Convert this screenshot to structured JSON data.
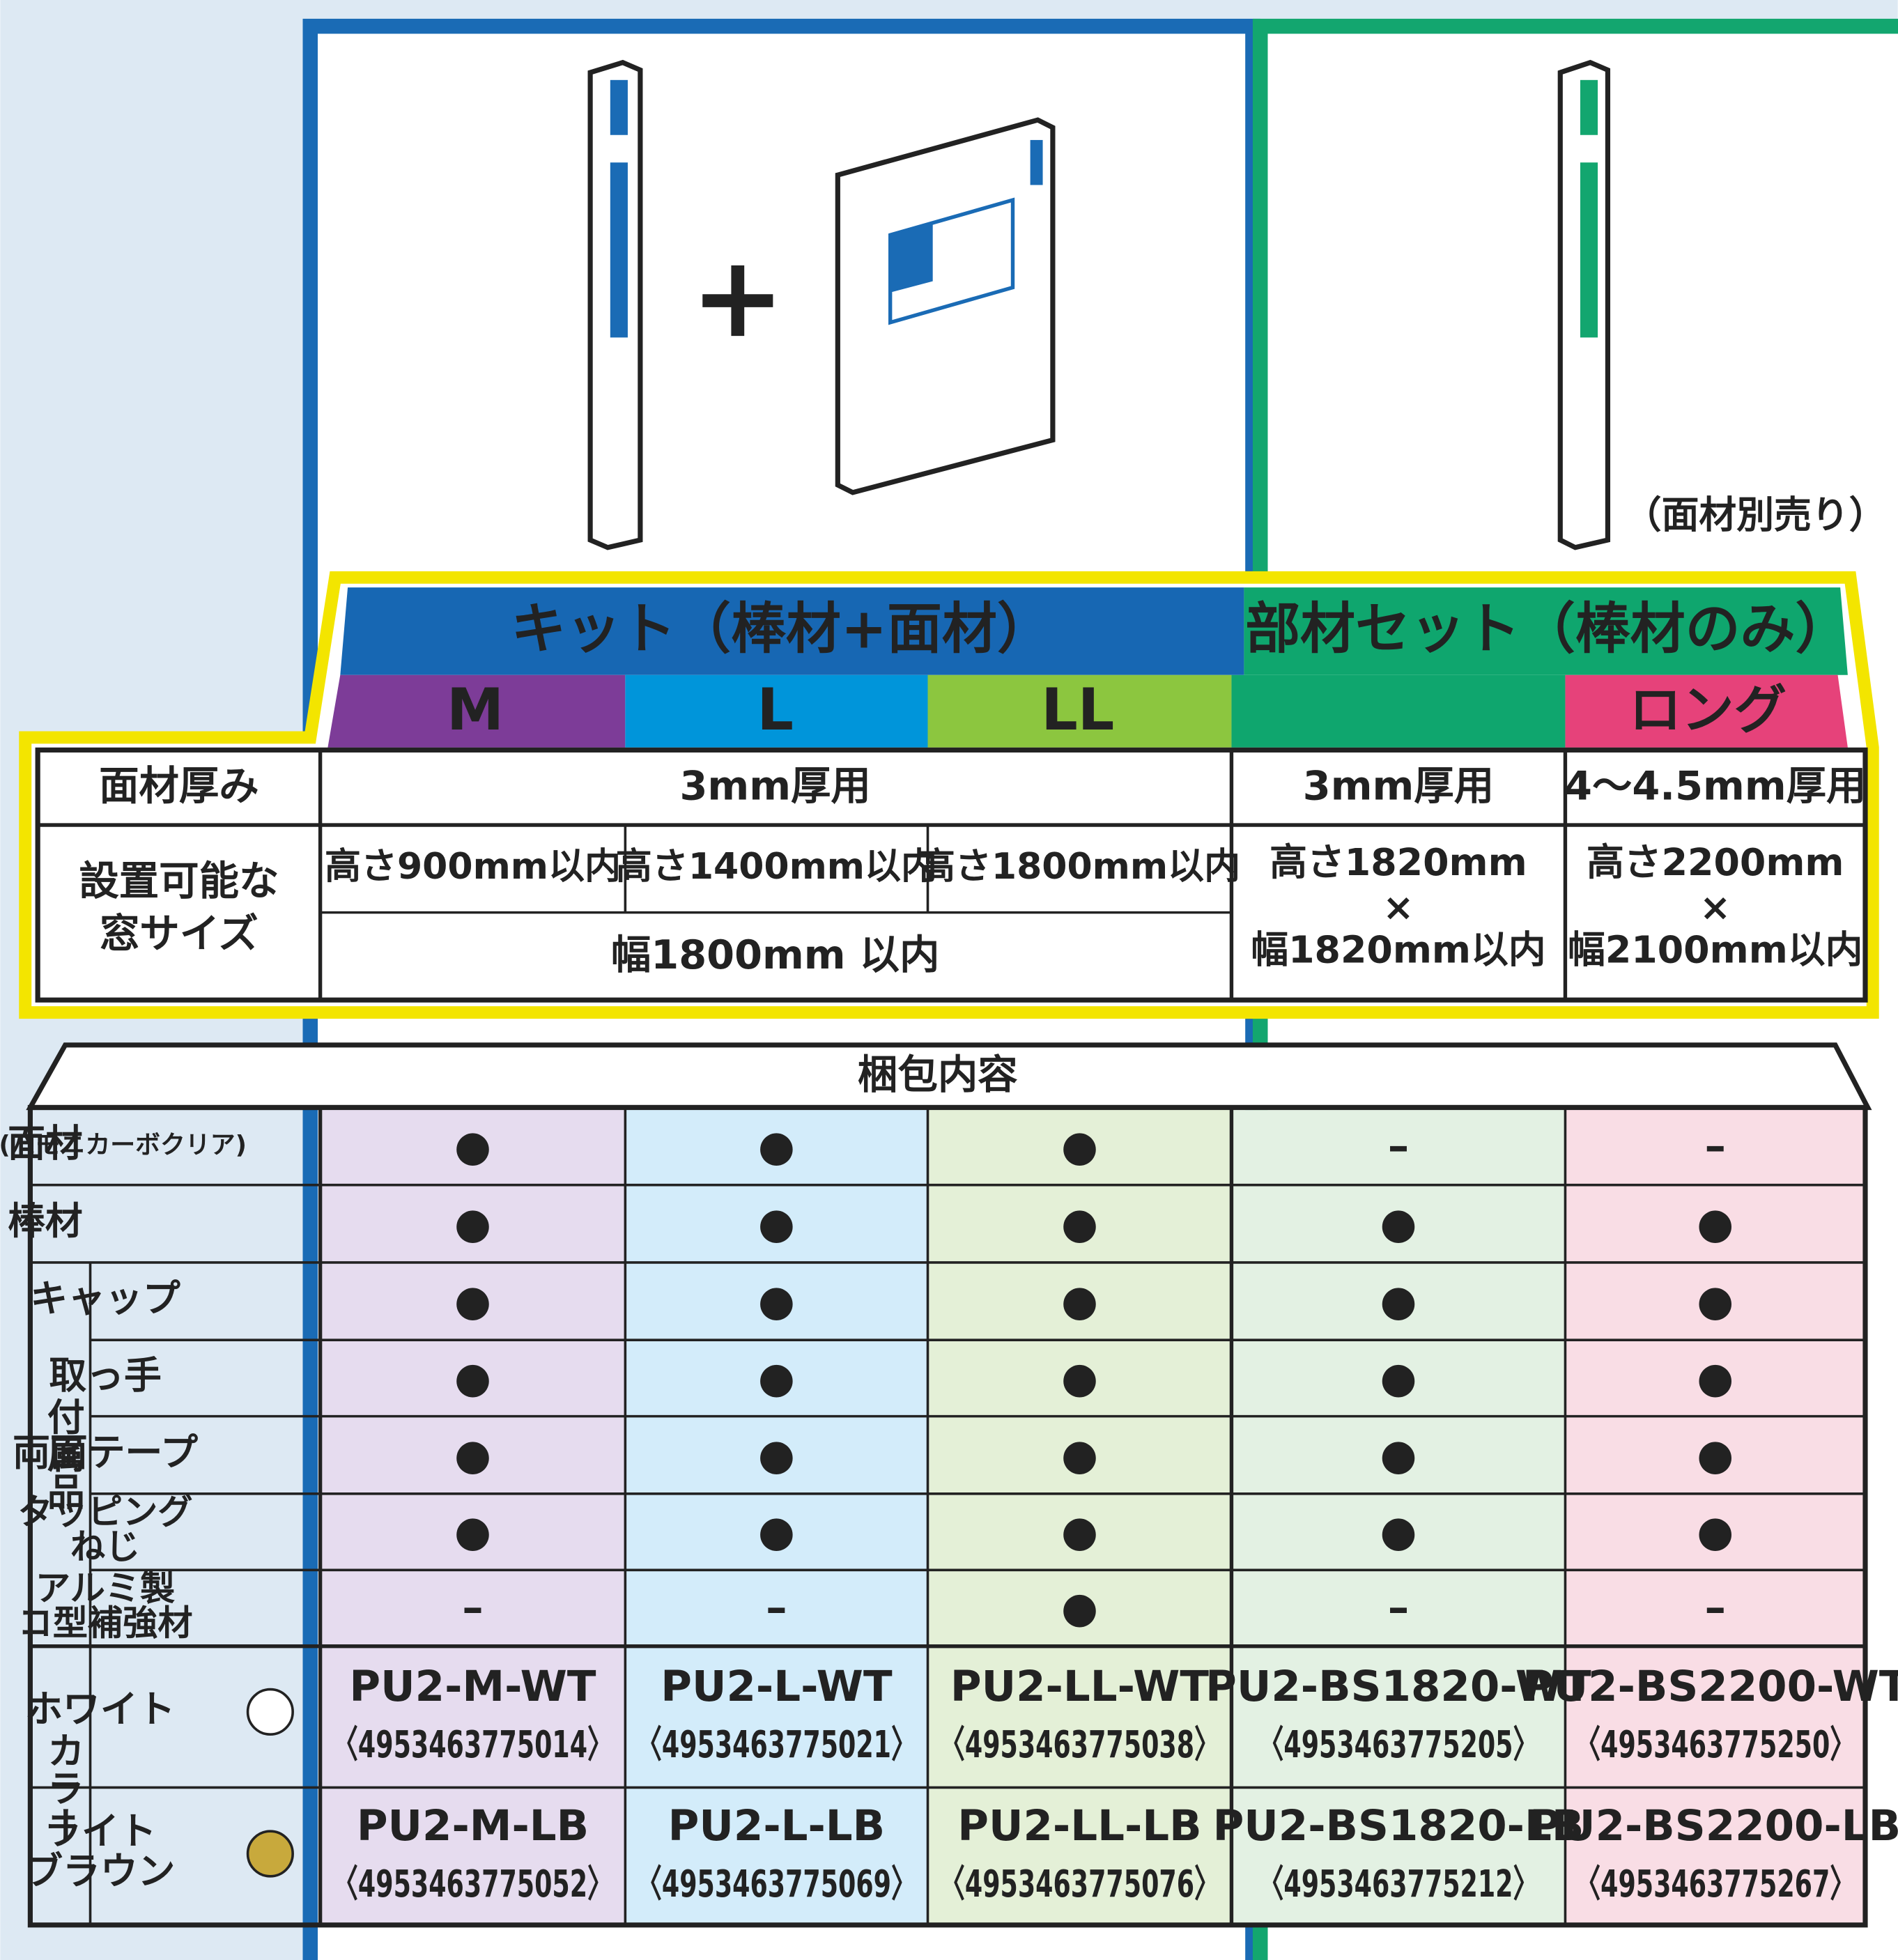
{
  "illustration": {
    "note": "（面材別売り）",
    "plus": "+"
  },
  "header": {
    "kit": "キット（棒材+面材）",
    "parts": "部材セット（棒材のみ）",
    "sizes": [
      "M",
      "L",
      "LL"
    ],
    "long": "ロング"
  },
  "specs": {
    "thickness": {
      "label": "面材厚み",
      "kit": "3mm厚用",
      "parts": [
        "3mm厚用",
        "4〜4.5mm厚用"
      ]
    },
    "window": {
      "label": [
        "設置可能な",
        "窓サイズ"
      ],
      "heights": [
        "高さ900mm以内",
        "高さ1400mm以内",
        "高さ1800mm以内"
      ],
      "width": "幅1800mm 以内",
      "parts": [
        [
          "高さ1820mm",
          "×",
          "幅1820mm以内"
        ],
        [
          "高さ2200mm",
          "×",
          "幅2100mm以内"
        ]
      ]
    }
  },
  "contents": {
    "title": "梱包内容",
    "accessories_group": "付属品",
    "color_group": "カラー",
    "rows": [
      {
        "label": [
          "面材",
          "(ハモニカーボクリア)"
        ],
        "marks": [
          "●",
          "●",
          "●",
          "–",
          "–"
        ]
      },
      {
        "label": [
          "棒材"
        ],
        "marks": [
          "●",
          "●",
          "●",
          "●",
          "●"
        ]
      },
      {
        "label": [
          "キャップ"
        ],
        "marks": [
          "●",
          "●",
          "●",
          "●",
          "●"
        ]
      },
      {
        "label": [
          "取っ手"
        ],
        "marks": [
          "●",
          "●",
          "●",
          "●",
          "●"
        ]
      },
      {
        "label": [
          "両面テープ"
        ],
        "marks": [
          "●",
          "●",
          "●",
          "●",
          "●"
        ]
      },
      {
        "label": [
          "タッピング",
          "ねじ"
        ],
        "marks": [
          "●",
          "●",
          "●",
          "●",
          "●"
        ]
      },
      {
        "label": [
          "アルミ製",
          "コ型補強材"
        ],
        "marks": [
          "–",
          "–",
          "●",
          "–",
          "–"
        ]
      }
    ],
    "colors": [
      {
        "label": [
          "ホワイト"
        ],
        "products": [
          [
            "PU2-M-WT",
            "〈4953463775014〉"
          ],
          [
            "PU2-L-WT",
            "〈4953463775021〉"
          ],
          [
            "PU2-LL-WT",
            "〈4953463775038〉"
          ],
          [
            "PU2-BS1820-WT",
            "〈4953463775205〉"
          ],
          [
            "PU2-BS2200-WT",
            "〈4953463775250〉"
          ]
        ]
      },
      {
        "label": [
          "ライト",
          "ブラウン"
        ],
        "products": [
          [
            "PU2-M-LB",
            "〈4953463775052〉"
          ],
          [
            "PU2-L-LB",
            "〈4953463775069〉"
          ],
          [
            "PU2-LL-LB",
            "〈4953463775076〉"
          ],
          [
            "PU2-BS1820-LB",
            "〈4953463775212〉"
          ],
          [
            "PU2-BS2200-LB",
            "〈4953463775267〉"
          ]
        ]
      }
    ]
  }
}
